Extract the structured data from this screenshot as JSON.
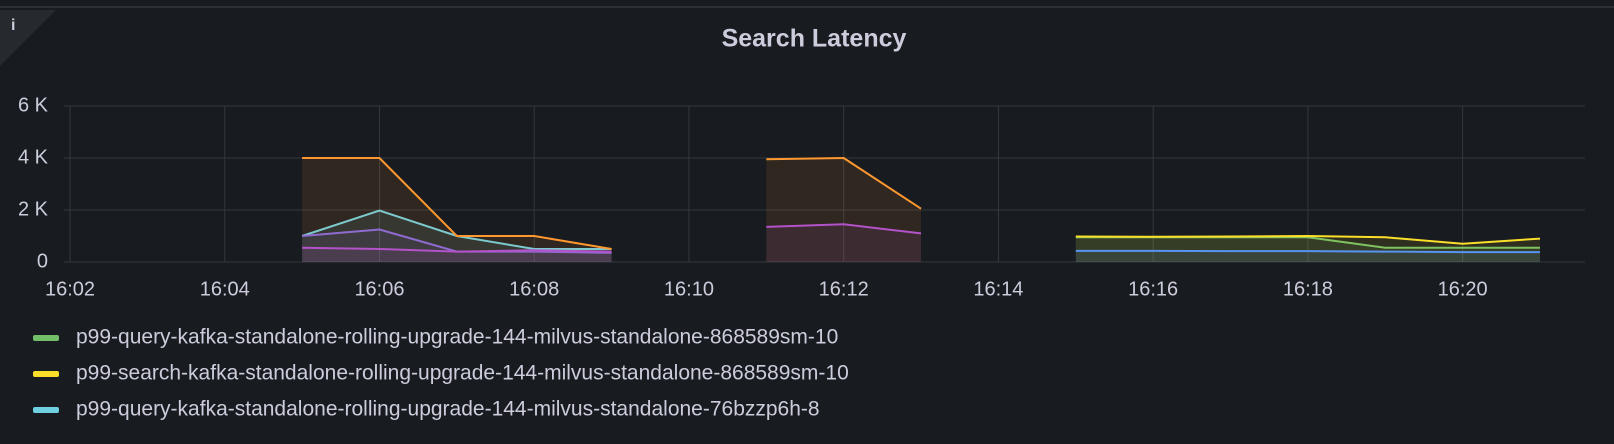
{
  "panel": {
    "info_icon": "i"
  },
  "chart_data": {
    "type": "line",
    "title": "Search Latency",
    "fill": true,
    "grid": true,
    "x": [
      "16:02",
      "16:03",
      "16:04",
      "16:05",
      "16:06",
      "16:07",
      "16:08",
      "16:09",
      "16:10",
      "16:11",
      "16:12",
      "16:13",
      "16:14",
      "16:15",
      "16:16",
      "16:17",
      "16:18",
      "16:19",
      "16:20",
      "16:21"
    ],
    "xlim": [
      "16:02",
      "16:21"
    ],
    "xticks": [
      "16:02",
      "16:04",
      "16:06",
      "16:08",
      "16:10",
      "16:12",
      "16:14",
      "16:16",
      "16:18",
      "16:20"
    ],
    "ylim": [
      0,
      6000
    ],
    "yticks": [
      {
        "value": 0,
        "label": "0"
      },
      {
        "value": 2000,
        "label": "2 K"
      },
      {
        "value": 4000,
        "label": "4 K"
      },
      {
        "value": 6000,
        "label": "6 K"
      }
    ],
    "series": [
      {
        "name": "p99-query-kafka-standalone-rolling-upgrade-144-milvus-standalone-868589sm-10",
        "color": "#73bf69",
        "values": [
          null,
          null,
          null,
          null,
          null,
          null,
          null,
          null,
          null,
          null,
          null,
          null,
          null,
          950,
          950,
          950,
          950,
          550,
          550,
          550
        ]
      },
      {
        "name": "p99-search-kafka-standalone-rolling-upgrade-144-milvus-standalone-868589sm-10",
        "color": "#fade2a",
        "values": [
          null,
          null,
          null,
          null,
          null,
          null,
          null,
          null,
          null,
          null,
          null,
          null,
          null,
          980,
          970,
          980,
          1000,
          950,
          700,
          900
        ]
      },
      {
        "name": "p99-query-kafka-standalone-rolling-upgrade-144-milvus-standalone-76bzzp6h-8",
        "color": "#6ed0e0",
        "values": [
          null,
          null,
          null,
          1000,
          1980,
          1000,
          500,
          500,
          null,
          null,
          null,
          null,
          null,
          null,
          null,
          null,
          null,
          null,
          null,
          null
        ]
      },
      {
        "color": "#ff9830",
        "values": [
          null,
          null,
          null,
          4000,
          4000,
          1000,
          1000,
          500,
          null,
          3950,
          4000,
          2050,
          null,
          null,
          null,
          null,
          null,
          null,
          null,
          null
        ]
      },
      {
        "color": "#8f6bd1",
        "values": [
          null,
          null,
          null,
          1000,
          1250,
          400,
          400,
          350,
          null,
          null,
          null,
          null,
          null,
          null,
          null,
          null,
          null,
          null,
          null,
          null
        ]
      },
      {
        "color": "#b352c9",
        "values": [
          null,
          null,
          null,
          550,
          500,
          400,
          450,
          400,
          null,
          1350,
          1450,
          1100,
          null,
          null,
          null,
          null,
          null,
          null,
          null,
          null
        ]
      },
      {
        "color": "#5794f2",
        "values": [
          null,
          null,
          null,
          null,
          null,
          null,
          null,
          null,
          null,
          null,
          null,
          null,
          null,
          430,
          430,
          420,
          420,
          400,
          380,
          380
        ]
      }
    ]
  }
}
